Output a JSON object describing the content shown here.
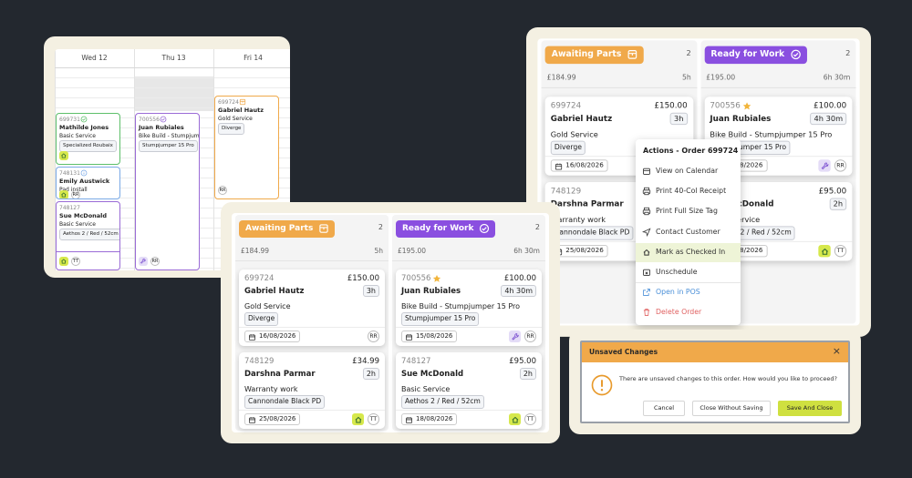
{
  "calendar": {
    "days": [
      "Wed 12",
      "Thu 13",
      "Fri 14"
    ],
    "events": [
      {
        "id": "699731",
        "name": "Mathilde Jones",
        "service": "Basic Service",
        "tag": "Specialized Roubaix"
      },
      {
        "id": "748131",
        "name": "Emily Austwick",
        "service": "Pad install",
        "initials": "RR"
      },
      {
        "id": "748127",
        "name": "Sue McDonald",
        "service": "Basic Service",
        "tag": "Aethos 2 / Red / 52cm",
        "initials": "TT"
      },
      {
        "id": "700556",
        "name": "Juan Rubiales",
        "service": "Bike Build - Stumpjump…",
        "tag": "Stumpjumper 15 Pro",
        "initials": "RR"
      },
      {
        "id": "699724",
        "name": "Gabriel Hautz",
        "service": "Gold Service",
        "tag": "Diverge",
        "initials": "RR"
      }
    ]
  },
  "board": {
    "columns": [
      {
        "title": "Awaiting Parts",
        "count": 2,
        "total": "£184.99",
        "hours": "5h",
        "cards": [
          {
            "id": "699724",
            "price": "£150.00",
            "name": "Gabriel Hautz",
            "duration": "3h",
            "service": "Gold Service",
            "tag": "Diverge",
            "date": "16/08/2026",
            "initials": "RR"
          },
          {
            "id": "748129",
            "price": "£34.99",
            "name": "Darshna Parmar",
            "duration": "2h",
            "service": "Warranty work",
            "tag": "Cannondale Black PD",
            "date": "25/08/2026",
            "initials": "TT"
          }
        ]
      },
      {
        "title": "Ready for Work",
        "count": 2,
        "total": "£195.00",
        "hours": "6h 30m",
        "cards": [
          {
            "id": "700556",
            "price": "£100.00",
            "name": "Juan Rubiales",
            "duration": "4h 30m",
            "service": "Bike Build - Stumpjumper 15 Pro",
            "tag": "Stumpjumper 15 Pro",
            "date": "15/08/2026",
            "initials": "RR"
          },
          {
            "id": "748127",
            "price": "£95.00",
            "name": "Sue McDonald",
            "duration": "2h",
            "service": "Basic Service",
            "tag": "Aethos 2 / Red / 52cm",
            "date": "18/08/2026",
            "initials": "TT"
          }
        ]
      }
    ]
  },
  "menu": {
    "title": "Actions - Order 699724",
    "items": [
      "View on Calendar",
      "Print 40-Col Receipt",
      "Print Full Size Tag",
      "Contact Customer",
      "Mark as Checked In",
      "Unschedule",
      "Open in POS",
      "Delete Order"
    ]
  },
  "dialog": {
    "title": "Unsaved Changes",
    "close": "×",
    "message": "There are unsaved changes to this order. How would you like to proceed?",
    "buttons": [
      "Cancel",
      "Close Without Saving",
      "Save And Close"
    ]
  }
}
